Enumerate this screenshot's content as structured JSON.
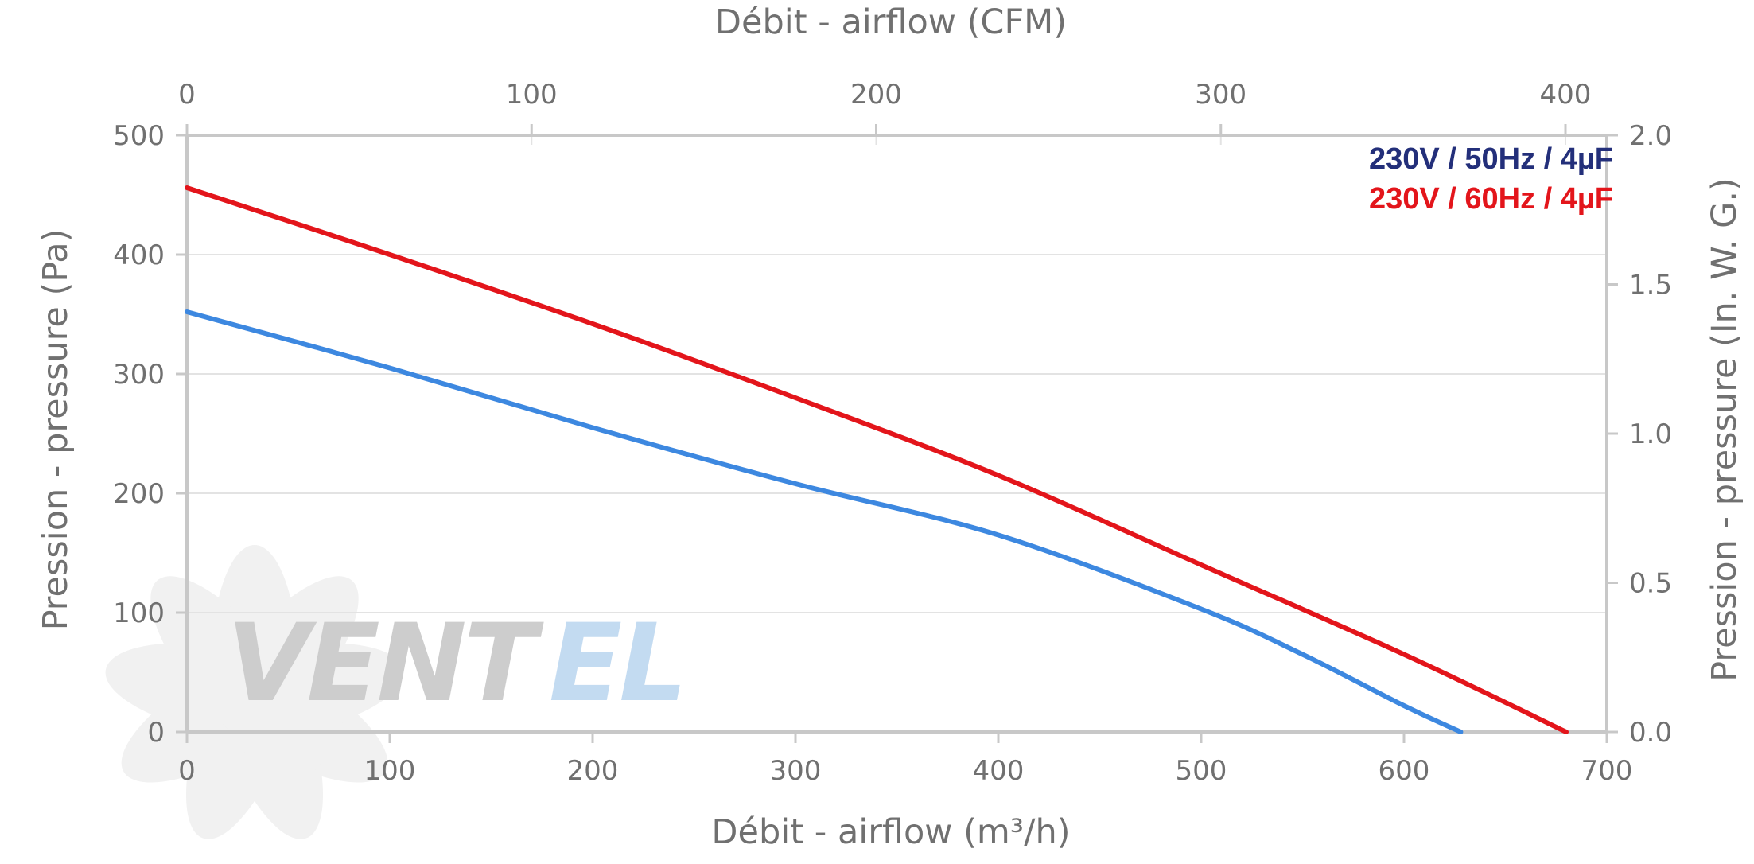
{
  "chart_data": {
    "type": "line",
    "top_axis": {
      "label": "Débit - airflow (CFM)",
      "ticks": [
        0,
        100,
        200,
        300,
        400
      ],
      "range": [
        0,
        412
      ]
    },
    "x_axis": {
      "label": "Débit - airflow (m³/h)",
      "ticks": [
        0,
        100,
        200,
        300,
        400,
        500,
        600,
        700
      ],
      "range": [
        0,
        700
      ]
    },
    "y_axis": {
      "label": "Pression - pressure (Pa)",
      "ticks": [
        0,
        100,
        200,
        300,
        400,
        500
      ],
      "range": [
        0,
        500
      ]
    },
    "y2_axis": {
      "label": "Pression - pressure (In. W. G.)",
      "ticks": [
        "0.0",
        "0.5",
        "1.0",
        "1.5",
        "2.0"
      ],
      "range": [
        0,
        2.0
      ]
    },
    "grid": true,
    "legend_position": "top-right",
    "series": [
      {
        "name": "230V / 50Hz / 4µF",
        "color": "#3d88e0",
        "label_color": "#232f7a",
        "x": [
          0,
          100,
          200,
          300,
          400,
          500,
          550,
          600,
          628
        ],
        "y": [
          352,
          305,
          255,
          208,
          165,
          103,
          65,
          22,
          0
        ]
      },
      {
        "name": "230V / 60Hz / 4µF",
        "color": "#e3151b",
        "label_color": "#e3151b",
        "x": [
          0,
          100,
          200,
          300,
          400,
          500,
          600,
          680
        ],
        "y": [
          456,
          400,
          342,
          280,
          215,
          140,
          65,
          0
        ]
      }
    ],
    "watermark": "VENTEL"
  }
}
